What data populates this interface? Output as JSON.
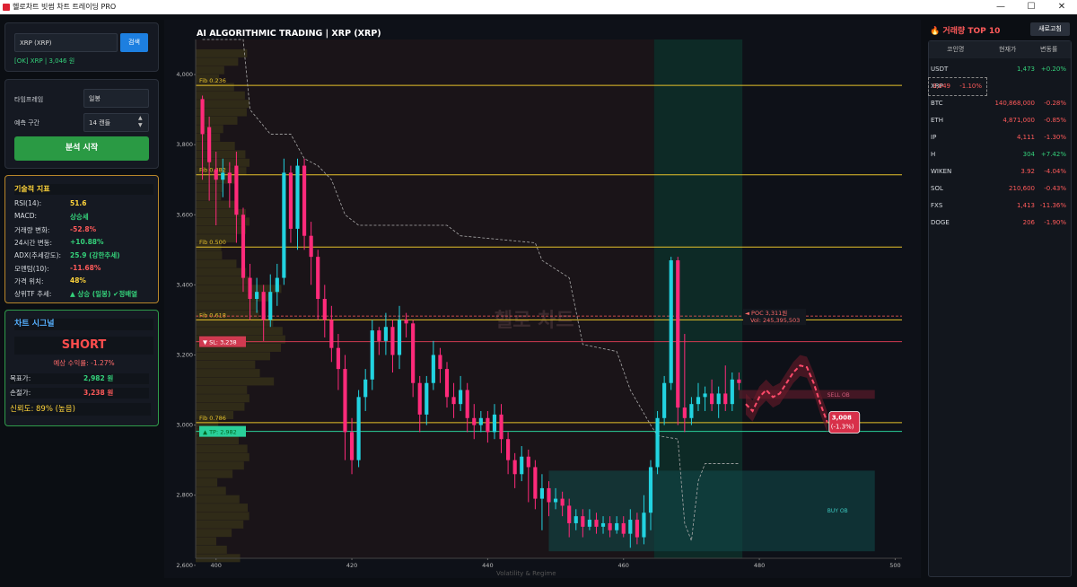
{
  "window": {
    "title": "헬로차트 빗썸 차트 트레이딩 PRO",
    "min": "—",
    "max": "☐",
    "close": "✕"
  },
  "search": {
    "value": "XRP (XRP)",
    "button": "검색",
    "status": "[OK] XRP | 3,046 원"
  },
  "settings": {
    "timeframe_label": "타임프레임",
    "timeframe_value": "일봉",
    "range_label": "예측 구간",
    "range_value": "14 캔들",
    "start_button": "분석 시작"
  },
  "indicators": {
    "title": "기술적 지표",
    "rows": [
      {
        "k": "RSI(14):",
        "v": "51.6",
        "color": "#ffd43b"
      },
      {
        "k": "MACD:",
        "v": "상승세",
        "color": "#34d17a"
      },
      {
        "k": "거래량 변화:",
        "v": "-52.8%",
        "color": "#ff5a5a"
      },
      {
        "k": "24시간 변동:",
        "v": "+10.88%",
        "color": "#34d17a"
      },
      {
        "k": "ADX(추세강도):",
        "v": "25.9 (강한추세)",
        "color": "#34d17a"
      },
      {
        "k": "모멘텀(10):",
        "v": "-11.68%",
        "color": "#ff5a5a"
      },
      {
        "k": "가격 위치:",
        "v": "48%",
        "color": "#ffd43b"
      },
      {
        "k": "상위TF 추세:",
        "v": "▲ 상승 (일봉) ✔정배열",
        "color": "#34d17a"
      }
    ]
  },
  "signal": {
    "title": "차트 시그널",
    "direction": "SHORT",
    "expected": "예상 수익률: -1.27%",
    "target_label": "목표가:",
    "target_value": "2,982 원",
    "stop_label": "손절가:",
    "stop_value": "3,238 원",
    "confidence": "신뢰도: 89% (높음)"
  },
  "chart": {
    "title": "AI ALGORITHMIC TRADING | XRP (XRP)",
    "watermark": "헬로 차트",
    "y_ticks": [
      "4,000",
      "3,800",
      "3,600",
      "3,400",
      "3,200",
      "3,000",
      "2,800",
      "2,600"
    ],
    "x_ticks": [
      "400",
      "420",
      "440",
      "460",
      "480",
      "500"
    ],
    "fib": [
      {
        "label": "Fib 0.236",
        "price": 3969
      },
      {
        "label": "Fib 0.382",
        "price": 3714
      },
      {
        "label": "Fib 0.500",
        "price": 3508
      },
      {
        "label": "Fib 0.618",
        "price": 3300
      },
      {
        "label": "Fib 0.786",
        "price": 3007
      }
    ],
    "sl_label": "▼ SL: 3,238",
    "tp_label": "▲ TP: 2,982",
    "poc_label": "◄ POC 3,311원",
    "poc_vol": "Vol: 245,395,503",
    "sell_ob": "SELL OB",
    "buy_ob": "BUY OB",
    "pred_label": "3,008",
    "pred_pct": "(-1.3%)",
    "bottom_text": "Volatility & Regime"
  },
  "chart_data": {
    "type": "line",
    "xlim": [
      397,
      501
    ],
    "ylim": [
      2620,
      4100
    ],
    "candles": [
      [
        398,
        3930,
        3830,
        3940,
        3700
      ],
      [
        399,
        3850,
        3750,
        3880,
        3640
      ],
      [
        400,
        3730,
        3700,
        3780,
        3570
      ],
      [
        401,
        3700,
        3720,
        3760,
        3650
      ],
      [
        402,
        3720,
        3690,
        3750,
        3620
      ],
      [
        403,
        3740,
        3600,
        3780,
        3520
      ],
      [
        404,
        3600,
        3420,
        3620,
        3380
      ],
      [
        405,
        3420,
        3360,
        3460,
        3300
      ],
      [
        406,
        3360,
        3380,
        3420,
        3320
      ],
      [
        407,
        3380,
        3300,
        3400,
        3240
      ],
      [
        408,
        3300,
        3380,
        3430,
        3280
      ],
      [
        409,
        3380,
        3420,
        3460,
        3340
      ],
      [
        410,
        3420,
        3720,
        3760,
        3400
      ],
      [
        411,
        3720,
        3560,
        3740,
        3520
      ],
      [
        412,
        3560,
        3740,
        3760,
        3500
      ],
      [
        413,
        3740,
        3540,
        3760,
        3500
      ],
      [
        414,
        3540,
        3480,
        3580,
        3400
      ],
      [
        415,
        3480,
        3360,
        3500,
        3300
      ],
      [
        416,
        3360,
        3300,
        3400,
        3250
      ],
      [
        417,
        3300,
        3220,
        3340,
        3180
      ],
      [
        418,
        3220,
        3160,
        3260,
        3100
      ],
      [
        419,
        3160,
        2980,
        3200,
        2900
      ],
      [
        420,
        2980,
        2900,
        3020,
        2860
      ],
      [
        421,
        2900,
        3080,
        3100,
        2880
      ],
      [
        422,
        3080,
        3130,
        3160,
        3040
      ],
      [
        423,
        3130,
        3270,
        3300,
        3100
      ],
      [
        424,
        3270,
        3240,
        3280,
        3200
      ],
      [
        425,
        3240,
        3280,
        3320,
        3200
      ],
      [
        426,
        3280,
        3200,
        3300,
        3150
      ],
      [
        427,
        3200,
        3300,
        3340,
        3160
      ],
      [
        428,
        3300,
        3290,
        3320,
        3250
      ],
      [
        429,
        3290,
        3120,
        3300,
        3080
      ],
      [
        430,
        3120,
        3030,
        3140,
        2980
      ],
      [
        431,
        3030,
        3120,
        3140,
        3000
      ],
      [
        432,
        3120,
        3200,
        3240,
        3100
      ],
      [
        433,
        3200,
        3160,
        3220,
        3120
      ],
      [
        434,
        3160,
        3080,
        3180,
        3050
      ],
      [
        435,
        3080,
        3060,
        3120,
        3020
      ],
      [
        436,
        3060,
        3100,
        3140,
        3040
      ],
      [
        437,
        3100,
        3020,
        3120,
        2980
      ],
      [
        438,
        3020,
        3000,
        3060,
        2960
      ],
      [
        439,
        3000,
        3020,
        3040,
        2980
      ],
      [
        440,
        3020,
        2980,
        3040,
        2950
      ],
      [
        441,
        2980,
        3030,
        3060,
        2960
      ],
      [
        442,
        3030,
        2960,
        3060,
        2920
      ],
      [
        443,
        2960,
        2900,
        2980,
        2860
      ],
      [
        444,
        2900,
        2860,
        2920,
        2820
      ],
      [
        445,
        2860,
        2910,
        2940,
        2840
      ],
      [
        446,
        2910,
        2880,
        2930,
        2780
      ],
      [
        447,
        2880,
        2790,
        2900,
        2760
      ],
      [
        448,
        2790,
        2820,
        2860,
        2700
      ],
      [
        449,
        2820,
        2780,
        2840,
        2740
      ],
      [
        450,
        2780,
        2790,
        2820,
        2760
      ],
      [
        451,
        2790,
        2770,
        2810,
        2740
      ],
      [
        452,
        2770,
        2720,
        2790,
        2680
      ],
      [
        453,
        2720,
        2740,
        2760,
        2700
      ],
      [
        454,
        2740,
        2710,
        2760,
        2680
      ],
      [
        455,
        2710,
        2730,
        2760,
        2700
      ],
      [
        456,
        2730,
        2710,
        2750,
        2690
      ],
      [
        457,
        2710,
        2720,
        2740,
        2690
      ],
      [
        458,
        2720,
        2700,
        2740,
        2680
      ],
      [
        459,
        2700,
        2720,
        2740,
        2690
      ],
      [
        460,
        2720,
        2690,
        2740,
        2680
      ],
      [
        461,
        2690,
        2730,
        2760,
        2650
      ],
      [
        462,
        2730,
        2680,
        2750,
        2660
      ],
      [
        463,
        2680,
        2750,
        2800,
        2660
      ],
      [
        464,
        2750,
        2880,
        2900,
        2700
      ],
      [
        465,
        2880,
        3020,
        3040,
        2860
      ],
      [
        466,
        3020,
        3120,
        3140,
        3000
      ],
      [
        467,
        3120,
        3470,
        3480,
        3100
      ],
      [
        468,
        3470,
        3050,
        3480,
        3000
      ],
      [
        469,
        3050,
        3020,
        3260,
        2980
      ],
      [
        470,
        3020,
        3060,
        3080,
        3000
      ],
      [
        471,
        3060,
        3080,
        3120,
        3040
      ],
      [
        472,
        3080,
        3090,
        3110,
        3040
      ],
      [
        473,
        3090,
        3060,
        3130,
        3040
      ],
      [
        474,
        3060,
        3090,
        3110,
        3020
      ],
      [
        475,
        3090,
        3060,
        3170,
        3040
      ],
      [
        476,
        3060,
        3130,
        3150,
        3040
      ],
      [
        477,
        3130,
        3120,
        3150,
        3100
      ]
    ],
    "cloud": [
      [
        398,
        4100
      ],
      [
        404,
        4100
      ],
      [
        405,
        3900
      ],
      [
        408,
        3830
      ],
      [
        411,
        3830
      ],
      [
        413,
        3760
      ],
      [
        415,
        3740
      ],
      [
        417,
        3700
      ],
      [
        419,
        3600
      ],
      [
        421,
        3570
      ],
      [
        434,
        3570
      ],
      [
        436,
        3540
      ],
      [
        447,
        3520
      ],
      [
        448,
        3470
      ],
      [
        452,
        3420
      ],
      [
        454,
        3230
      ],
      [
        459,
        3210
      ],
      [
        461,
        3100
      ],
      [
        464,
        3000
      ],
      [
        465,
        2970
      ],
      [
        468,
        2960
      ],
      [
        469,
        2720
      ],
      [
        470,
        2670
      ],
      [
        471,
        2840
      ],
      [
        472,
        2890
      ],
      [
        477,
        2890
      ]
    ],
    "forecast": [
      [
        478,
        3060
      ],
      [
        479,
        3040
      ],
      [
        480,
        3080
      ],
      [
        481,
        3100
      ],
      [
        482,
        3080
      ],
      [
        483,
        3090
      ],
      [
        484,
        3120
      ],
      [
        485,
        3150
      ],
      [
        486,
        3170
      ],
      [
        487,
        3165
      ],
      [
        488,
        3120
      ],
      [
        489,
        3060
      ],
      [
        490,
        3008
      ]
    ],
    "sl": 3238,
    "tp": 2982,
    "poc": 3311
  }
}
